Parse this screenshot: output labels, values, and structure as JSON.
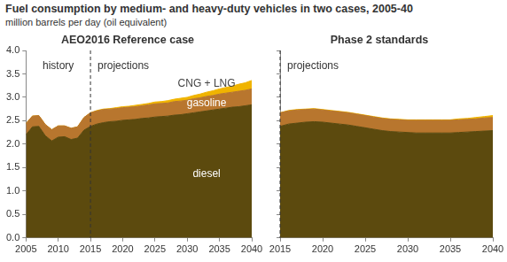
{
  "title": "Fuel consumption by medium- and heavy-duty vehicles in two cases, 2005-40",
  "subtitle": "million barrels per day (oil equivalent)",
  "chart_data": [
    {
      "type": "area",
      "title": "AEO2016 Reference case",
      "stacked": true,
      "grid": false,
      "x": [
        2005,
        2006,
        2007,
        2008,
        2009,
        2010,
        2011,
        2012,
        2013,
        2014,
        2015,
        2016,
        2017,
        2018,
        2019,
        2020,
        2021,
        2022,
        2023,
        2024,
        2025,
        2026,
        2027,
        2028,
        2029,
        2030,
        2031,
        2032,
        2033,
        2034,
        2035,
        2036,
        2037,
        2038,
        2039,
        2040
      ],
      "series": [
        {
          "name": "diesel",
          "color": "#5c4a0e",
          "values": [
            2.2,
            2.37,
            2.38,
            2.18,
            2.07,
            2.15,
            2.16,
            2.1,
            2.13,
            2.3,
            2.38,
            2.43,
            2.46,
            2.48,
            2.49,
            2.51,
            2.52,
            2.53,
            2.55,
            2.56,
            2.58,
            2.59,
            2.6,
            2.62,
            2.63,
            2.65,
            2.67,
            2.69,
            2.71,
            2.73,
            2.75,
            2.77,
            2.79,
            2.8,
            2.82,
            2.84
          ]
        },
        {
          "name": "gasoline",
          "color": "#b8762e",
          "values": [
            0.24,
            0.23,
            0.23,
            0.24,
            0.24,
            0.24,
            0.23,
            0.24,
            0.24,
            0.27,
            0.29,
            0.28,
            0.28,
            0.27,
            0.27,
            0.27,
            0.27,
            0.27,
            0.27,
            0.28,
            0.28,
            0.28,
            0.28,
            0.29,
            0.29,
            0.29,
            0.3,
            0.3,
            0.31,
            0.31,
            0.32,
            0.32,
            0.32,
            0.33,
            0.33,
            0.34
          ]
        },
        {
          "name": "CNG + LNG",
          "color": "#f0b400",
          "values": [
            0,
            0,
            0,
            0,
            0,
            0,
            0,
            0,
            0,
            0,
            0,
            0.01,
            0.01,
            0.01,
            0.02,
            0.02,
            0.02,
            0.03,
            0.03,
            0.03,
            0.04,
            0.04,
            0.05,
            0.05,
            0.06,
            0.06,
            0.07,
            0.08,
            0.09,
            0.1,
            0.11,
            0.12,
            0.13,
            0.15,
            0.16,
            0.18
          ]
        }
      ],
      "xlim": [
        2005,
        2040
      ],
      "xticks": [
        2005,
        2010,
        2015,
        2020,
        2025,
        2030,
        2035,
        2040
      ],
      "ylim": [
        0,
        4
      ],
      "yticks": [
        {
          "value": 0,
          "label": "0.0"
        },
        0.5,
        {
          "value": 1,
          "label": "1.0"
        },
        1.5,
        {
          "value": 2,
          "label": "2.0"
        },
        2.5,
        {
          "value": 3,
          "label": "3.0"
        },
        3.5,
        {
          "value": 4,
          "label": "4.0"
        }
      ],
      "divider": 2015,
      "regions": [
        {
          "label": "history",
          "from": 2005,
          "to": 2015
        },
        {
          "label": "projections",
          "from": 2015,
          "to": 2040
        }
      ]
    },
    {
      "type": "area",
      "title": "Phase 2 standards",
      "stacked": true,
      "grid": false,
      "tick_labels": "x",
      "x": [
        2015,
        2016,
        2017,
        2018,
        2019,
        2020,
        2021,
        2022,
        2023,
        2024,
        2025,
        2026,
        2027,
        2028,
        2029,
        2030,
        2031,
        2032,
        2033,
        2034,
        2035,
        2036,
        2037,
        2038,
        2039,
        2040
      ],
      "series": [
        {
          "color": "#5c4a0e",
          "values": [
            2.38,
            2.43,
            2.45,
            2.47,
            2.48,
            2.47,
            2.45,
            2.43,
            2.41,
            2.38,
            2.35,
            2.32,
            2.29,
            2.27,
            2.26,
            2.25,
            2.24,
            2.24,
            2.24,
            2.24,
            2.24,
            2.25,
            2.26,
            2.27,
            2.28,
            2.29
          ]
        },
        {
          "color": "#b8762e",
          "values": [
            0.29,
            0.28,
            0.28,
            0.27,
            0.27,
            0.26,
            0.26,
            0.26,
            0.26,
            0.26,
            0.26,
            0.26,
            0.26,
            0.26,
            0.26,
            0.26,
            0.27,
            0.27,
            0.27,
            0.27,
            0.27,
            0.27,
            0.27,
            0.27,
            0.28,
            0.28
          ]
        },
        {
          "color": "#f0b400",
          "values": [
            0,
            0.01,
            0.01,
            0.01,
            0.01,
            0.01,
            0.01,
            0.01,
            0.01,
            0.01,
            0.01,
            0.01,
            0.01,
            0.01,
            0.01,
            0.01,
            0.01,
            0.01,
            0.01,
            0.01,
            0.01,
            0.02,
            0.02,
            0.03,
            0.03,
            0.04
          ]
        }
      ],
      "xlim": [
        2015,
        2040
      ],
      "xticks": [
        2015,
        2020,
        2025,
        2030,
        2035,
        2040
      ],
      "ylim": [
        0,
        4
      ],
      "yticks": [
        {
          "value": 0,
          "label": "0.0"
        },
        0.5,
        {
          "value": 1,
          "label": "1.0"
        },
        1.5,
        {
          "value": 2,
          "label": "2.0"
        },
        2.5,
        {
          "value": 3,
          "label": "3.0"
        },
        3.5,
        {
          "value": 4,
          "label": "4.0"
        }
      ],
      "divider": 2015,
      "regions": [
        {
          "label": "projections",
          "from": 2015,
          "to": 2040
        }
      ]
    }
  ]
}
